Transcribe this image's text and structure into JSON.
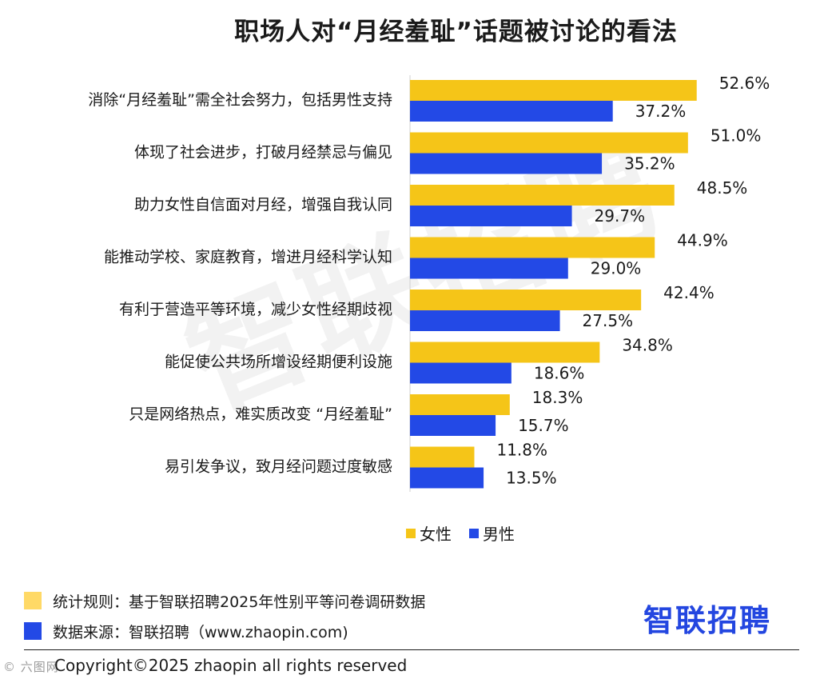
{
  "title": "职场人对“月经羞耻”话题被讨论的看法",
  "watermark": "智联招聘",
  "colors": {
    "female": "#F5C518",
    "male": "#2349E6",
    "logo": "#2346e0"
  },
  "legend": {
    "female": "女性",
    "male": "男性"
  },
  "notes": {
    "rule": "统计规则：基于智联招聘2025年性别平等问卷调研数据",
    "source": "数据来源：智联招聘（www.zhaopin.com)"
  },
  "logo_text": "智联招聘",
  "copyright": "Copyright©2025 zhaopin all rights reserved",
  "corner_mark": "© 六图网",
  "chart_data": {
    "type": "bar",
    "orientation": "horizontal",
    "categories": [
      "消除“月经羞耻”需全社会努力，包括男性支持",
      "体现了社会进步，打破月经禁忌与偏见",
      "助力女性自信面对月经，增强自我认同",
      "能推动学校、家庭教育，增进月经科学认知",
      "有利于营造平等环境，减少女性经期歧视",
      "能促使公共场所增设经期便利设施",
      "只是网络热点，难实质改变 “月经羞耻”",
      "易引发争议，致月经问题过度敏感"
    ],
    "series": [
      {
        "name": "女性",
        "values": [
          52.6,
          51.0,
          48.5,
          44.9,
          42.4,
          34.8,
          18.3,
          11.8
        ],
        "labels": [
          "52.6%",
          "51.0%",
          "48.5%",
          "44.9%",
          "42.4%",
          "34.8%",
          "18.3%",
          "11.8%"
        ]
      },
      {
        "name": "男性",
        "values": [
          37.2,
          35.2,
          29.7,
          29.0,
          27.5,
          18.6,
          15.7,
          13.5
        ],
        "labels": [
          "37.2%",
          "35.2%",
          "29.7%",
          "29.0%",
          "27.5%",
          "18.6%",
          "15.7%",
          "13.5%"
        ]
      }
    ],
    "xlim": [
      0,
      60
    ],
    "legend_position": "bottom",
    "grid": false
  }
}
